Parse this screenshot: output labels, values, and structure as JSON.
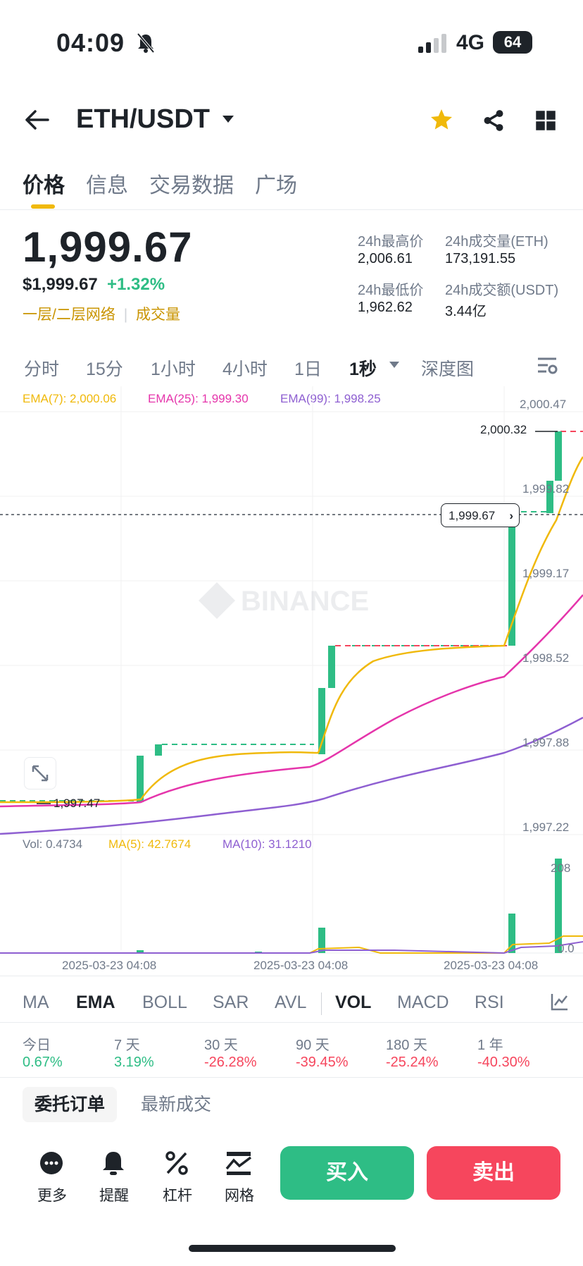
{
  "status_bar": {
    "time": "04:09",
    "network": "4G",
    "battery": "64"
  },
  "header": {
    "pair": "ETH/USDT",
    "icons": [
      "back-arrow-icon",
      "caret-down-icon",
      "star-icon",
      "share-icon",
      "grid-icon"
    ]
  },
  "tabs": [
    "价格",
    "信息",
    "交易数据",
    "广场"
  ],
  "price": {
    "last": "1,999.67",
    "usd": "$1,999.67",
    "change": "+1.32%",
    "network_link": "一层/二层网络",
    "volume_link": "成交量"
  },
  "stats": {
    "high_label": "24h最高价",
    "high_value": "2,006.61",
    "vol_eth_label": "24h成交量(ETH)",
    "vol_eth_value": "173,191.55",
    "low_label": "24h最低价",
    "low_value": "1,962.62",
    "vol_usdt_label": "24h成交额(USDT)",
    "vol_usdt_value": "3.44亿"
  },
  "intervals": [
    "分时",
    "15分",
    "1小时",
    "4小时",
    "1日",
    "1秒",
    "深度图"
  ],
  "ema_legend": {
    "ema7": "EMA(7): 2,000.06",
    "ema25": "EMA(25): 1,999.30",
    "ema99": "EMA(99): 1,998.25"
  },
  "vol_legend": {
    "vol": "Vol: 0.4734",
    "ma5": "MA(5): 42.7674",
    "ma10": "MA(10): 31.1210"
  },
  "chart_data": {
    "type": "candlestick",
    "price_axis_labels": [
      "2,000.47",
      "1,999.82",
      "1,999.17",
      "1,998.52",
      "1,997.88",
      "1,997.22"
    ],
    "high_marker": "2,000.32",
    "low_marker": "1,997.47",
    "current_price_tag": "1,999.67",
    "volume_axis_labels": [
      "208",
      "0.0"
    ],
    "time_labels": [
      "2025-03-23 04:08",
      "2025-03-23 04:08",
      "2025-03-23 04:08"
    ],
    "watermark": "BINANCE",
    "colors": {
      "up": "#2ebd85",
      "down": "#f6465d",
      "ema7": "#f0b90b",
      "ema25": "#e535ab",
      "ema99": "#8e5fd1"
    }
  },
  "indicator_tabs": [
    "MA",
    "EMA",
    "BOLL",
    "SAR",
    "AVL",
    "VOL",
    "MACD",
    "RSI"
  ],
  "performance": [
    {
      "label": "今日",
      "value": "0.67%"
    },
    {
      "label": "7 天",
      "value": "3.19%"
    },
    {
      "label": "30 天",
      "value": "-26.28%"
    },
    {
      "label": "90 天",
      "value": "-39.45%"
    },
    {
      "label": "180 天",
      "value": "-25.24%"
    },
    {
      "label": "1 年",
      "value": "-40.30%"
    }
  ],
  "order_tabs": [
    "委托订单",
    "最新成交"
  ],
  "bottom_actions": [
    "更多",
    "提醒",
    "杠杆",
    "网格"
  ],
  "buy_label": "买入",
  "sell_label": "卖出"
}
